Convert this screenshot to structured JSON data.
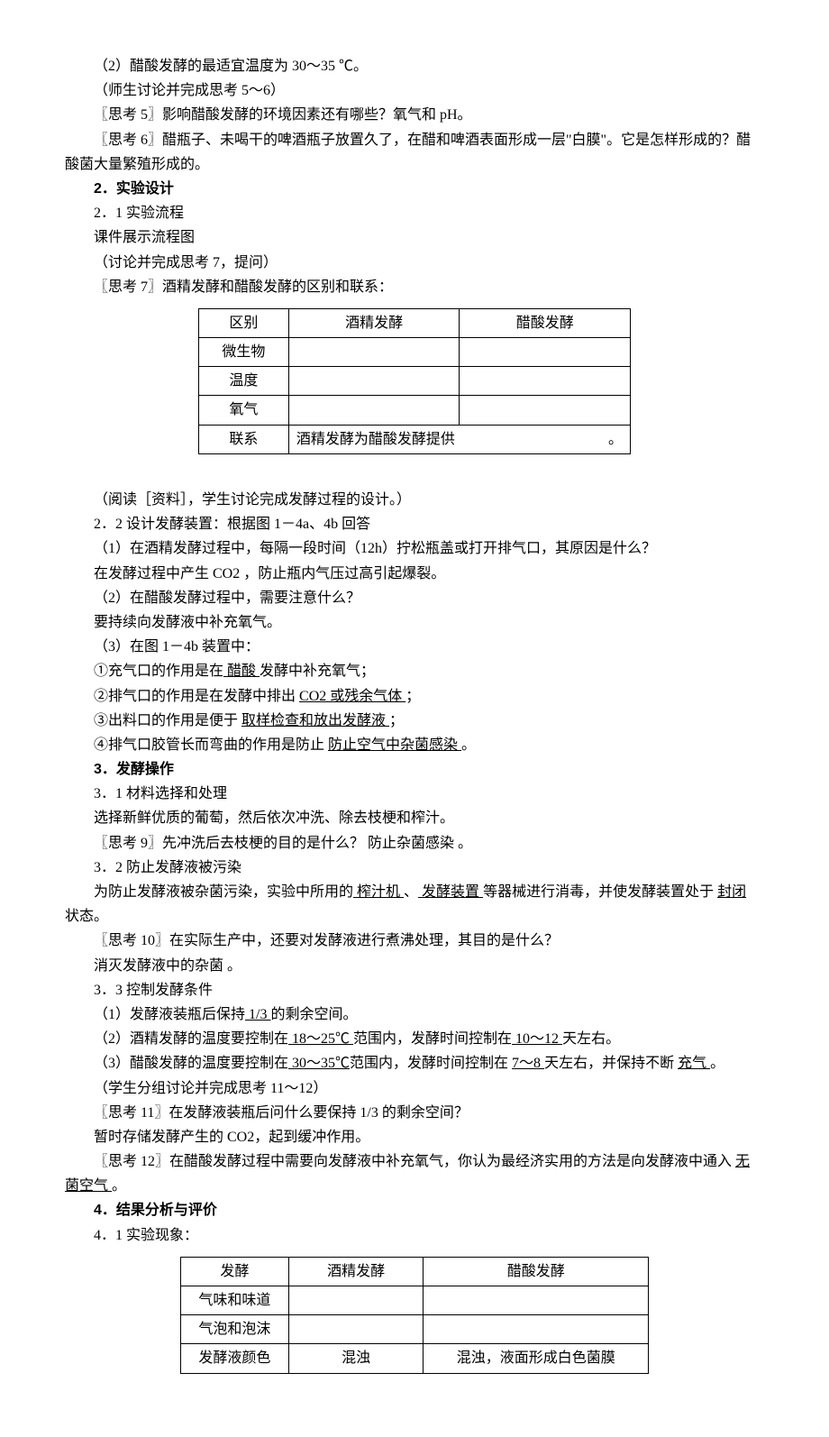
{
  "p1": "（2）醋酸发酵的最适宜温度为  30～35 ℃。",
  "p2": "（师生讨论并完成思考 5～6）",
  "p3": "〖思考 5〗影响醋酸发酵的环境因素还有哪些？氧气和 pH。",
  "p4": "〖思考 6〗醋瓶子、未喝干的啤酒瓶子放置久了，在醋和啤酒表面形成一层\"白膜\"。它是怎样形成的？醋酸菌大量繁殖形成的。",
  "s2_num": "2．",
  "s2_title": "实验设计",
  "p5": "2．1 实验流程",
  "p6": "课件展示流程图",
  "p7": "（讨论并完成思考 7，提问）",
  "p8": "〖思考 7〗酒精发酵和醋酸发酵的区别和联系：",
  "table1": {
    "headers": [
      "区别",
      "酒精发酵",
      "醋酸发酵"
    ],
    "rows": [
      "微生物",
      "温度",
      "氧气"
    ],
    "footer_label": "联系",
    "footer_text_a": "酒精发酵为醋酸发酵提供",
    "footer_text_b": "。"
  },
  "p9": "（阅读［资料］，学生讨论完成发酵过程的设计。）",
  "p10": "2．2 设计发酵装置：根据图 1－4a、4b 回答",
  "p11": "（1）在酒精发酵过程中，每隔一段时间（12h）拧松瓶盖或打开排气口，其原因是什么？",
  "p12": "在发酵过程中产生 CO2 ，防止瓶内气压过高引起爆裂。",
  "p13": "（2）在醋酸发酵过程中，需要注意什么？",
  "p14": "要持续向发酵液中补充氧气。",
  "p15": "（3）在图 1－4b 装置中：",
  "p16a": "①充气口的作用是在",
  "p16u": " 醋酸 ",
  "p16b": "发酵中补充氧气；",
  "p17a": "②排气口的作用是在发酵中排出 ",
  "p17u": " CO2 或残余气体 ",
  "p17b": "；",
  "p18a": "③出料口的作用是便于 ",
  "p18u": " 取样检查和放出发酵液 ",
  "p18b": "；",
  "p19a": "④排气口胶管长而弯曲的作用是防止 ",
  "p19u": " 防止空气中杂菌感染  ",
  "p19b": "。",
  "s3_num": "3．",
  "s3_title": "发酵操作",
  "p20": "3．1 材料选择和处理",
  "p21": "选择新鲜优质的葡萄，然后依次冲洗、除去枝梗和榨汁。",
  "p22": "〖思考 9〗先冲洗后去枝梗的目的是什么？  防止杂菌感染  。",
  "p23": "3．2 防止发酵液被污染",
  "p24a": "为防止发酵液被杂菌污染，实验中所用的",
  "p24u1": "  榨汁机  ",
  "p24b": "、",
  "p24u2": "  发酵装置  ",
  "p24c": "等器械进行消毒，并使发酵装置处于 ",
  "p24u3": " 封闭 ",
  "p24d": "状态。",
  "p25": "〖思考 10〗在实际生产中，还要对发酵液进行煮沸处理，其目的是什么？",
  "p26": "消灭发酵液中的杂菌  。",
  "p27": "3．3 控制发酵条件",
  "p28a": "（1）发酵液装瓶后保持",
  "p28u": " 1/3 ",
  "p28b": "的剩余空间。",
  "p29a": "（2）酒精发酵的温度要控制在",
  "p29u1": " 18～25℃ ",
  "p29b": "范围内，发酵时间控制在",
  "p29u2": " 10～12 ",
  "p29c": "天左右。",
  "p30a": "（3）醋酸发酵的温度要控制在",
  "p30u1": " 30～35℃",
  "p30b": "范围内，发酵时间控制在 ",
  "p30u2": " 7～8  ",
  "p30c": "天左右，并保持不断 ",
  "p30u3": " 充气  ",
  "p30d": "。",
  "p31": "（学生分组讨论并完成思考 11～12）",
  "p32": "〖思考 11〗在发酵液装瓶后问什么要保持 1/3 的剩余空间？",
  "p33": "暂时存储发酵产生的 CO2，起到缓冲作用。",
  "p34a": "〖思考 12〗在醋酸发酵过程中需要向发酵液中补充氧气，你认为最经济实用的方法是向发酵液中通入 ",
  "p34u": " 无菌空气 ",
  "p34b": "。",
  "s4_num": "4．",
  "s4_title": "结果分析与评价",
  "p35": "4．1 实验现象：",
  "table2": {
    "headers": [
      "发酵",
      "酒精发酵",
      "醋酸发酵"
    ],
    "row1": "气味和味道",
    "row2": "气泡和泡沫",
    "row3_label": "发酵液颜色",
    "row3_c2": "混浊",
    "row3_c3": "混浊，液面形成白色菌膜"
  }
}
